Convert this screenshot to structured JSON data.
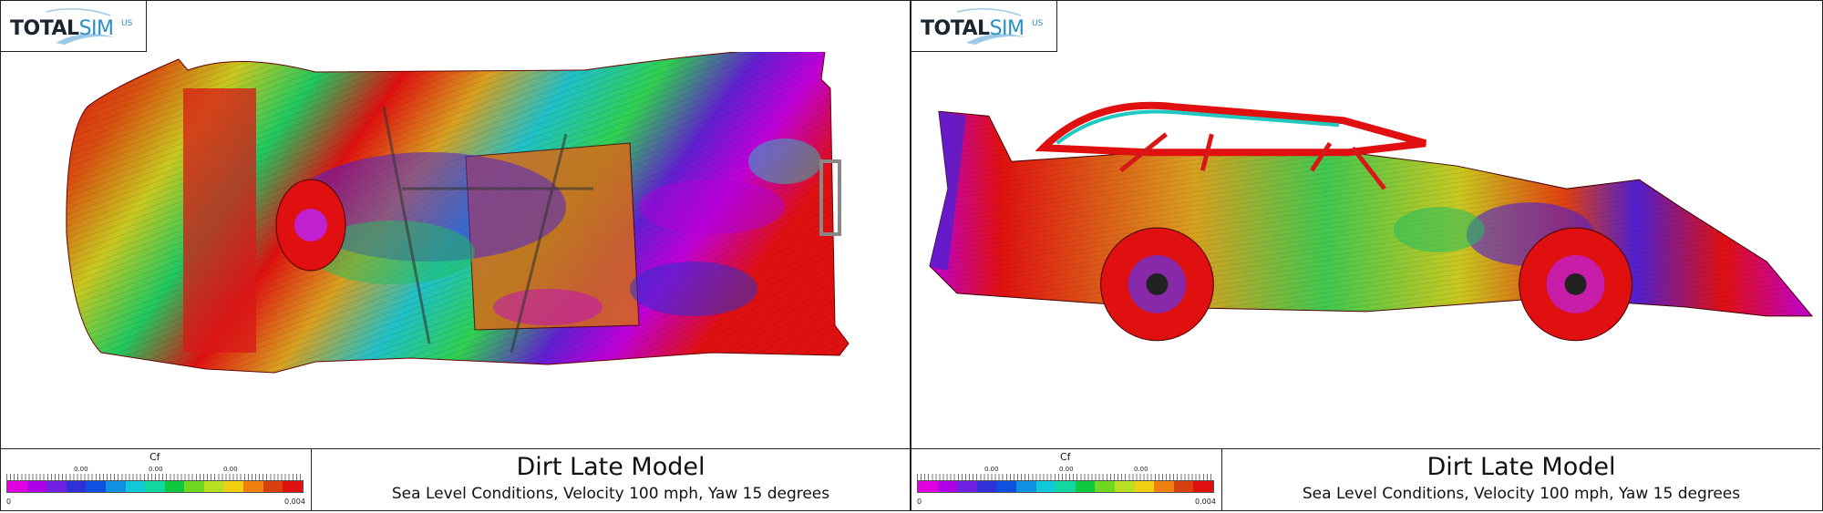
{
  "logo": {
    "part1": "TOTAL",
    "part2": "SIM",
    "part3": "US"
  },
  "panels": [
    {
      "view": "top",
      "legend": {
        "variable": "Cf",
        "tick_labels": [
          "0.00",
          "0.00",
          "0.00"
        ],
        "min": "0",
        "max": "0.004"
      },
      "title": "Dirt Late Model",
      "subtitle": "Sea Level Conditions, Velocity 100 mph, Yaw 15 degrees"
    },
    {
      "view": "side",
      "legend": {
        "variable": "Cf",
        "tick_labels": [
          "0.00",
          "0.00",
          "0.00"
        ],
        "min": "0",
        "max": "0.004"
      },
      "title": "Dirt Late Model",
      "subtitle": "Sea Level Conditions, Velocity 100 mph, Yaw 15 degrees"
    }
  ],
  "colormap": [
    "#e000e0",
    "#b000e8",
    "#7020e0",
    "#3030d8",
    "#1050e0",
    "#1090e0",
    "#10c8d8",
    "#10d8a0",
    "#10c840",
    "#70d820",
    "#b8e020",
    "#f0d010",
    "#f08010",
    "#d84010",
    "#e01010"
  ]
}
